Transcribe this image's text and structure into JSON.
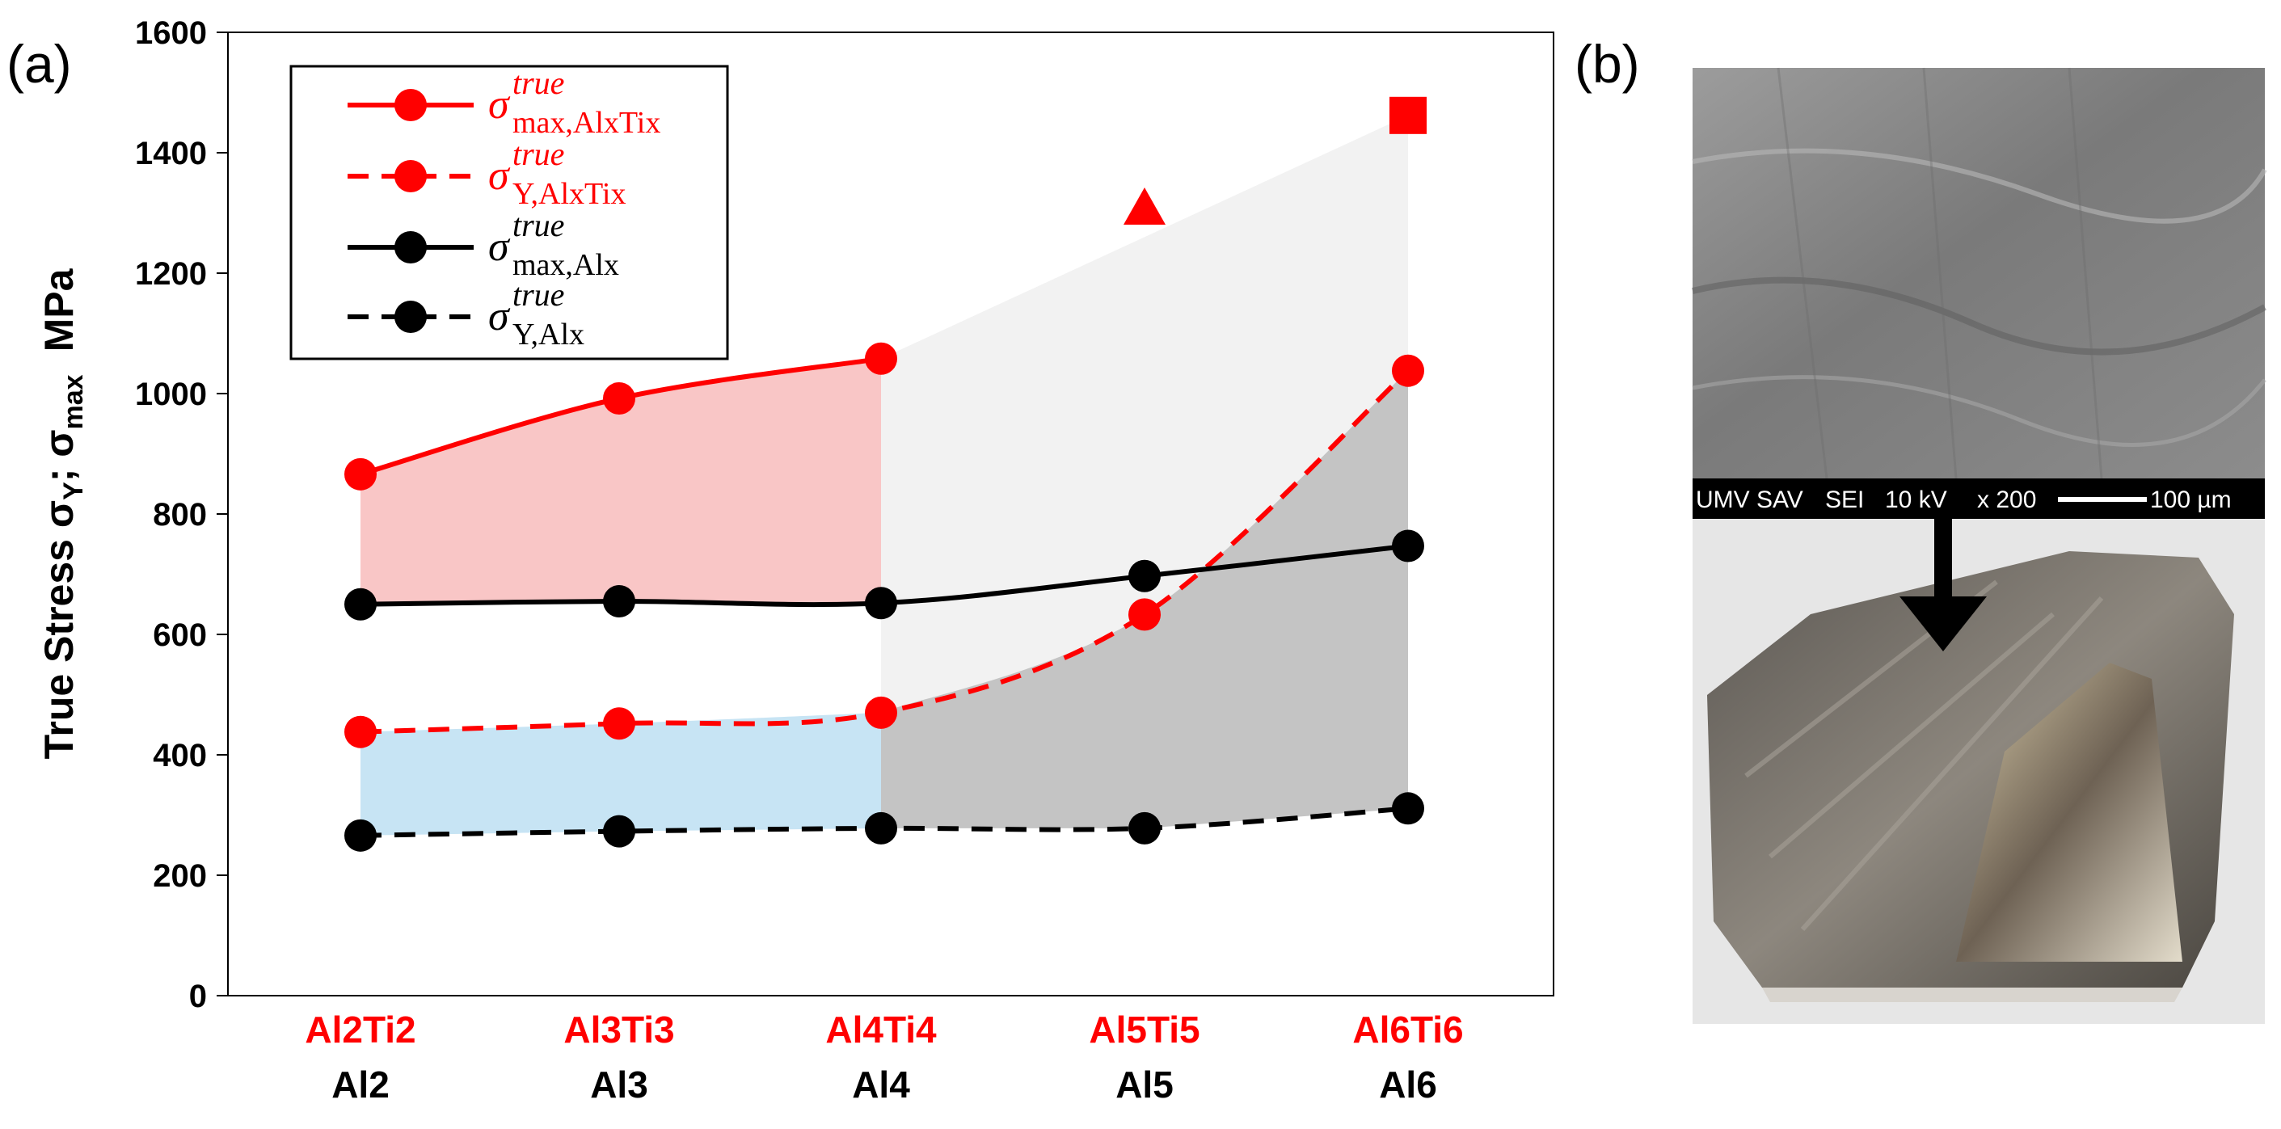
{
  "panels": {
    "a": "(a)",
    "b": "(b)"
  },
  "colors": {
    "red": "#ff0000",
    "black": "#000000",
    "pink_fill": "#f9c6c6",
    "blue_fill": "#c7e4f4",
    "light_gray_fill": "#f2f2f2",
    "dark_gray_fill": "#c4c4c4"
  },
  "chart_data": {
    "type": "line",
    "ylabel": "True Stress  σY; σmax  MPa",
    "ylabel_parts": {
      "prefix": "True Stress  σ",
      "sub1": "Y",
      "sep": "; σ",
      "sub2": "max",
      "unit": "MPa"
    },
    "ylim": [
      0,
      1600
    ],
    "yticks": [
      "0",
      "200",
      "400",
      "600",
      "800",
      "1000",
      "1200",
      "1400",
      "1600"
    ],
    "categories_top": [
      "Al2Ti2",
      "Al3Ti3",
      "Al4Ti4",
      "Al5Ti5",
      "Al6Ti6"
    ],
    "categories_bottom": [
      "Al2",
      "Al3",
      "Al4",
      "Al5",
      "Al6"
    ],
    "series": [
      {
        "name": "σ true max,AlxTix",
        "symbol": "σ",
        "sup": "true",
        "sub": "max,AlxTix",
        "color": "#ff0000",
        "dash": "solid",
        "x": [
          1,
          2,
          3
        ],
        "values": [
          866,
          992,
          1058
        ]
      },
      {
        "name": "σ true Y,AlxTix",
        "symbol": "σ",
        "sup": "true",
        "sub": "Y,AlxTix",
        "color": "#ff0000",
        "dash": "dashed",
        "x": [
          1,
          2,
          3,
          4,
          5
        ],
        "values": [
          438,
          452,
          470,
          633,
          1038
        ]
      },
      {
        "name": "σ true max,Alx",
        "symbol": "σ",
        "sup": "true",
        "sub": "max,Alx",
        "color": "#000000",
        "dash": "solid",
        "x": [
          1,
          2,
          3,
          4,
          5
        ],
        "values": [
          650,
          655,
          652,
          697,
          747
        ]
      },
      {
        "name": "σ true Y,Alx",
        "symbol": "σ",
        "sup": "true",
        "sub": "Y,Alx",
        "color": "#000000",
        "dash": "dashed",
        "x": [
          1,
          2,
          3,
          4,
          5
        ],
        "values": [
          266,
          273,
          278,
          278,
          311
        ]
      }
    ],
    "extra_markers": [
      {
        "shape": "triangle",
        "x": 4,
        "value": 1310,
        "color": "#ff0000"
      },
      {
        "shape": "square",
        "x": 5,
        "value": 1462,
        "color": "#ff0000"
      }
    ],
    "legend_position": "top-left",
    "grid": false
  },
  "sem": {
    "info_bar": {
      "lab": "UMV SAV",
      "mode": "SEI",
      "voltage": "10 kV",
      "magnification": "x 200",
      "scale": "100 µm"
    }
  },
  "icons": {
    "arrow": "down-arrow-icon"
  }
}
